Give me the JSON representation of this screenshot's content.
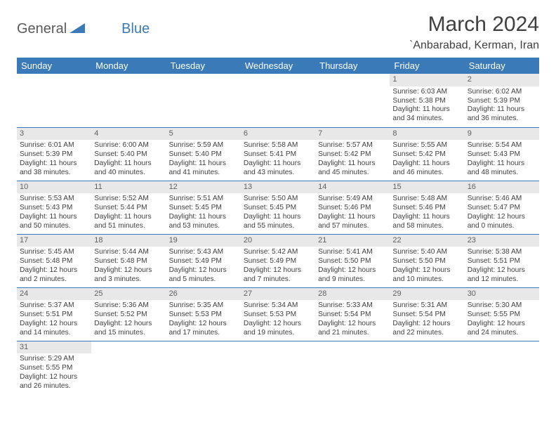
{
  "logo": {
    "text1": "General",
    "text2": "Blue"
  },
  "month_title": "March 2024",
  "location": "`Anbarabad, Kerman, Iran",
  "colors": {
    "header_bg": "#3a7ab8",
    "header_text": "#ffffff",
    "day_num_bg": "#e8e8e8",
    "border": "#3a7ab8",
    "body_text": "#404040"
  },
  "day_headers": [
    "Sunday",
    "Monday",
    "Tuesday",
    "Wednesday",
    "Thursday",
    "Friday",
    "Saturday"
  ],
  "weeks": [
    [
      null,
      null,
      null,
      null,
      null,
      {
        "n": "1",
        "sr": "6:03 AM",
        "ss": "5:38 PM",
        "dl": "11 hours and 34 minutes."
      },
      {
        "n": "2",
        "sr": "6:02 AM",
        "ss": "5:39 PM",
        "dl": "11 hours and 36 minutes."
      }
    ],
    [
      {
        "n": "3",
        "sr": "6:01 AM",
        "ss": "5:39 PM",
        "dl": "11 hours and 38 minutes."
      },
      {
        "n": "4",
        "sr": "6:00 AM",
        "ss": "5:40 PM",
        "dl": "11 hours and 40 minutes."
      },
      {
        "n": "5",
        "sr": "5:59 AM",
        "ss": "5:40 PM",
        "dl": "11 hours and 41 minutes."
      },
      {
        "n": "6",
        "sr": "5:58 AM",
        "ss": "5:41 PM",
        "dl": "11 hours and 43 minutes."
      },
      {
        "n": "7",
        "sr": "5:57 AM",
        "ss": "5:42 PM",
        "dl": "11 hours and 45 minutes."
      },
      {
        "n": "8",
        "sr": "5:55 AM",
        "ss": "5:42 PM",
        "dl": "11 hours and 46 minutes."
      },
      {
        "n": "9",
        "sr": "5:54 AM",
        "ss": "5:43 PM",
        "dl": "11 hours and 48 minutes."
      }
    ],
    [
      {
        "n": "10",
        "sr": "5:53 AM",
        "ss": "5:43 PM",
        "dl": "11 hours and 50 minutes."
      },
      {
        "n": "11",
        "sr": "5:52 AM",
        "ss": "5:44 PM",
        "dl": "11 hours and 51 minutes."
      },
      {
        "n": "12",
        "sr": "5:51 AM",
        "ss": "5:45 PM",
        "dl": "11 hours and 53 minutes."
      },
      {
        "n": "13",
        "sr": "5:50 AM",
        "ss": "5:45 PM",
        "dl": "11 hours and 55 minutes."
      },
      {
        "n": "14",
        "sr": "5:49 AM",
        "ss": "5:46 PM",
        "dl": "11 hours and 57 minutes."
      },
      {
        "n": "15",
        "sr": "5:48 AM",
        "ss": "5:46 PM",
        "dl": "11 hours and 58 minutes."
      },
      {
        "n": "16",
        "sr": "5:46 AM",
        "ss": "5:47 PM",
        "dl": "12 hours and 0 minutes."
      }
    ],
    [
      {
        "n": "17",
        "sr": "5:45 AM",
        "ss": "5:48 PM",
        "dl": "12 hours and 2 minutes."
      },
      {
        "n": "18",
        "sr": "5:44 AM",
        "ss": "5:48 PM",
        "dl": "12 hours and 3 minutes."
      },
      {
        "n": "19",
        "sr": "5:43 AM",
        "ss": "5:49 PM",
        "dl": "12 hours and 5 minutes."
      },
      {
        "n": "20",
        "sr": "5:42 AM",
        "ss": "5:49 PM",
        "dl": "12 hours and 7 minutes."
      },
      {
        "n": "21",
        "sr": "5:41 AM",
        "ss": "5:50 PM",
        "dl": "12 hours and 9 minutes."
      },
      {
        "n": "22",
        "sr": "5:40 AM",
        "ss": "5:50 PM",
        "dl": "12 hours and 10 minutes."
      },
      {
        "n": "23",
        "sr": "5:38 AM",
        "ss": "5:51 PM",
        "dl": "12 hours and 12 minutes."
      }
    ],
    [
      {
        "n": "24",
        "sr": "5:37 AM",
        "ss": "5:51 PM",
        "dl": "12 hours and 14 minutes."
      },
      {
        "n": "25",
        "sr": "5:36 AM",
        "ss": "5:52 PM",
        "dl": "12 hours and 15 minutes."
      },
      {
        "n": "26",
        "sr": "5:35 AM",
        "ss": "5:53 PM",
        "dl": "12 hours and 17 minutes."
      },
      {
        "n": "27",
        "sr": "5:34 AM",
        "ss": "5:53 PM",
        "dl": "12 hours and 19 minutes."
      },
      {
        "n": "28",
        "sr": "5:33 AM",
        "ss": "5:54 PM",
        "dl": "12 hours and 21 minutes."
      },
      {
        "n": "29",
        "sr": "5:31 AM",
        "ss": "5:54 PM",
        "dl": "12 hours and 22 minutes."
      },
      {
        "n": "30",
        "sr": "5:30 AM",
        "ss": "5:55 PM",
        "dl": "12 hours and 24 minutes."
      }
    ],
    [
      {
        "n": "31",
        "sr": "5:29 AM",
        "ss": "5:55 PM",
        "dl": "12 hours and 26 minutes."
      },
      null,
      null,
      null,
      null,
      null,
      null
    ]
  ],
  "labels": {
    "sunrise": "Sunrise:",
    "sunset": "Sunset:",
    "daylight": "Daylight:"
  }
}
